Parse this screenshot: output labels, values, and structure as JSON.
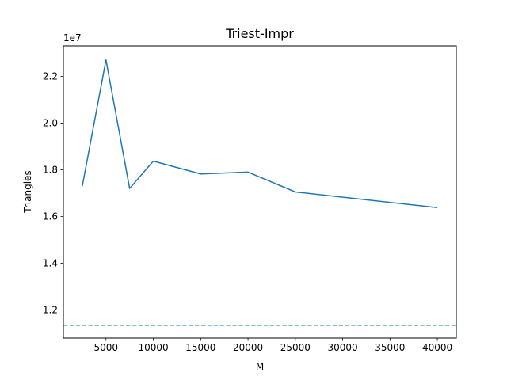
{
  "chart_data": {
    "type": "line",
    "title": "Triest-Impr",
    "xlabel": "M",
    "ylabel": "Triangles",
    "y_offset_label": "1e7",
    "xlim": [
      500,
      42000
    ],
    "ylim": [
      10800000,
      23300000
    ],
    "x_ticks": [
      5000,
      10000,
      15000,
      20000,
      25000,
      30000,
      35000,
      40000
    ],
    "x_tick_labels": [
      "5000",
      "10000",
      "15000",
      "20000",
      "25000",
      "30000",
      "35000",
      "40000"
    ],
    "y_ticks": [
      12000000,
      14000000,
      16000000,
      18000000,
      20000000,
      22000000
    ],
    "y_tick_labels": [
      "1.2",
      "1.4",
      "1.6",
      "1.8",
      "2.0",
      "2.2"
    ],
    "grid": false,
    "series": [
      {
        "style": "solid",
        "color": "#1f77b4",
        "x": [
          2500,
          5000,
          7500,
          10000,
          15000,
          20000,
          25000,
          40000
        ],
        "y": [
          17300000,
          22700000,
          17200000,
          18370000,
          17820000,
          17900000,
          17050000,
          16380000
        ]
      }
    ],
    "reference_lines": [
      {
        "style": "dashed",
        "color": "#1f77b4",
        "y": 11350000
      }
    ]
  }
}
